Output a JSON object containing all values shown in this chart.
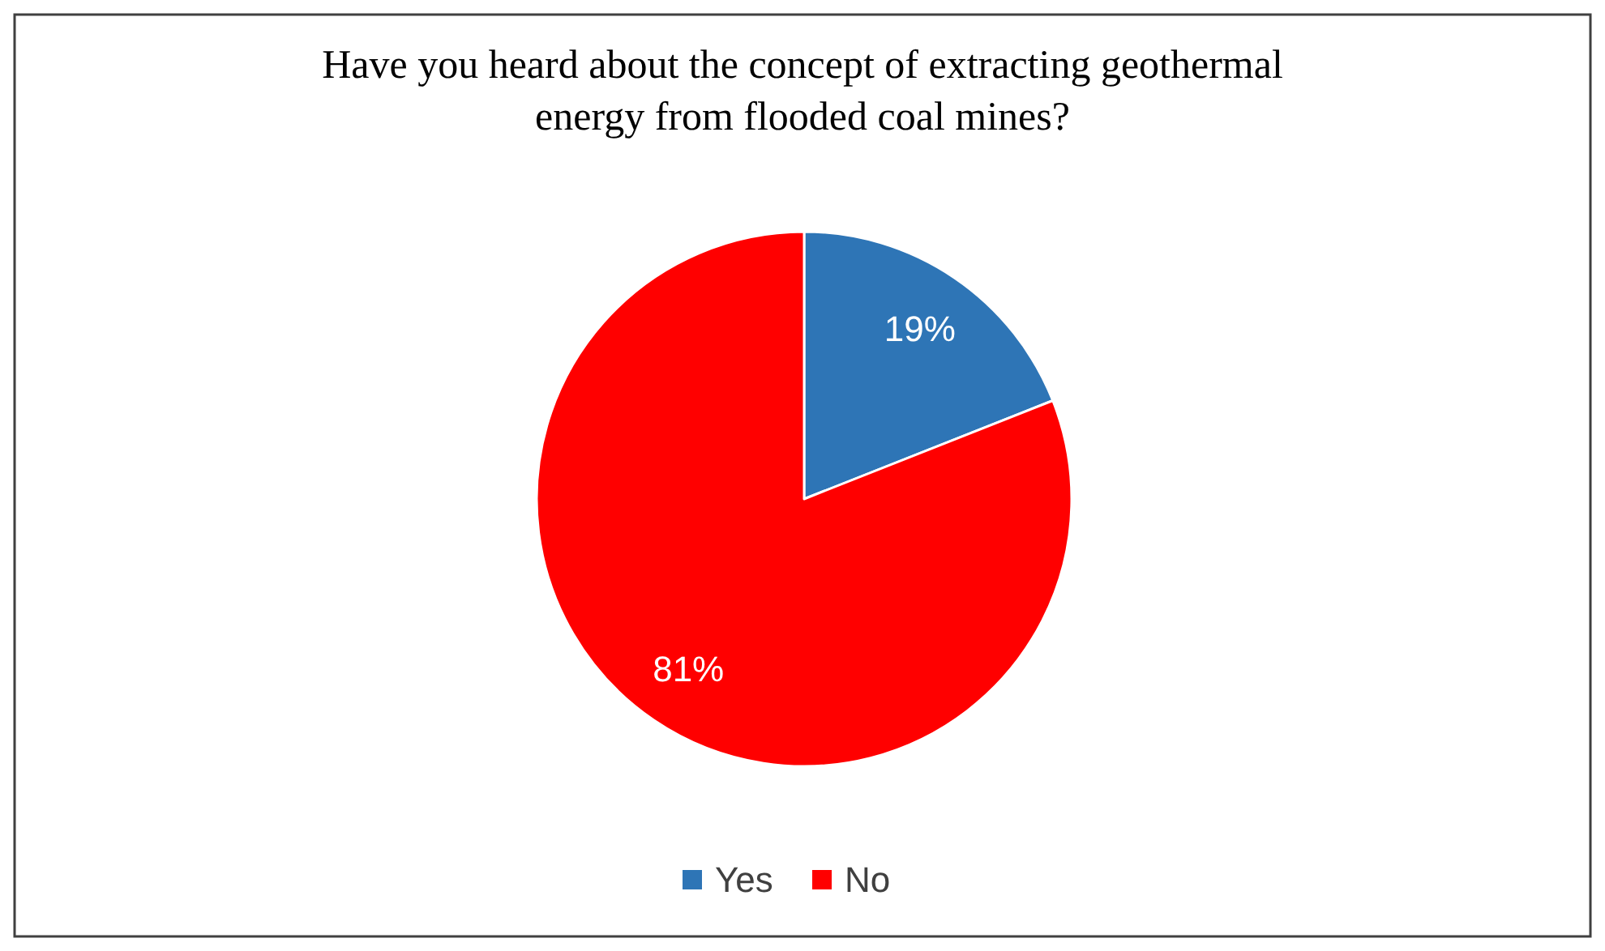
{
  "chart_data": {
    "type": "pie",
    "title": "Have you heard about the concept of extracting geothermal energy from flooded coal mines?",
    "categories": [
      "Yes",
      "No"
    ],
    "values": [
      19,
      81
    ],
    "colors": [
      "#2e75b6",
      "#ff0000"
    ],
    "value_labels": [
      "19%",
      "81%"
    ],
    "legend": "bottom"
  }
}
